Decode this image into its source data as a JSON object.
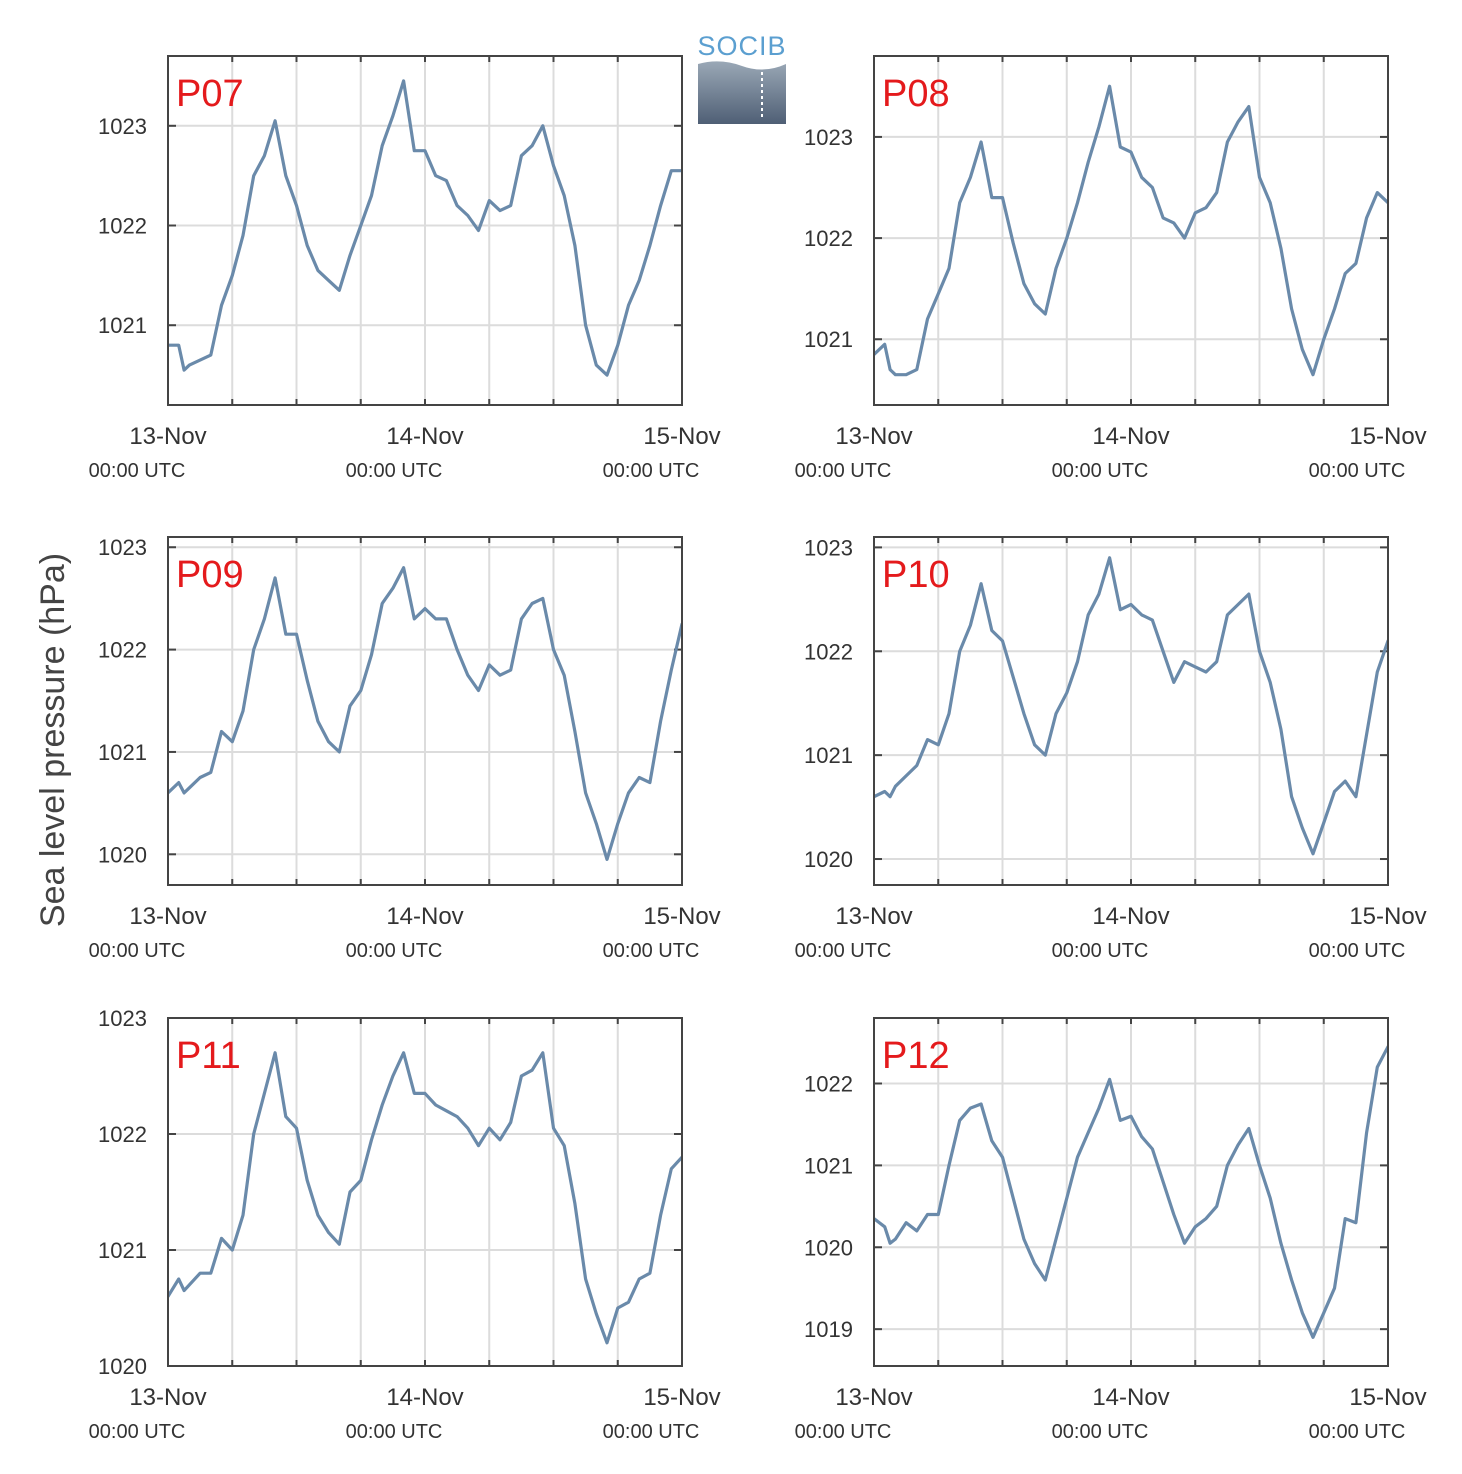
{
  "figure": {
    "ylabel": "Sea level pressure (hPa)",
    "logo_text": "SOCIB",
    "line_color": "#6a8aaa",
    "label_color": "#e41a1c"
  },
  "chart_data": [
    {
      "type": "line",
      "station": "P07",
      "x_unit": "hours since 13-Nov 00:00 UTC",
      "ylim": [
        1020.2,
        1023.7
      ],
      "yticks": [
        1021,
        1022,
        1023
      ],
      "xticks": [
        {
          "hour": 0,
          "date": "13-Nov",
          "time": "00:00 UTC"
        },
        {
          "hour": 24,
          "date": "14-Nov",
          "time": "00:00 UTC"
        },
        {
          "hour": 48,
          "date": "15-Nov",
          "time": "00:00 UTC"
        }
      ],
      "grid": true,
      "x": [
        0,
        1,
        1.5,
        2,
        3,
        4,
        5,
        6,
        7,
        8,
        9,
        10,
        11,
        12,
        13,
        14,
        15,
        16,
        17,
        18,
        19,
        20,
        21,
        22,
        23,
        24,
        25,
        26,
        27,
        28,
        29,
        30,
        31,
        32,
        33,
        34,
        35,
        36,
        37,
        38,
        39,
        40,
        41,
        42,
        43,
        44,
        45,
        46,
        47,
        48
      ],
      "y": [
        1020.8,
        1020.8,
        1020.55,
        1020.6,
        1020.65,
        1020.7,
        1021.2,
        1021.5,
        1021.9,
        1022.5,
        1022.7,
        1023.05,
        1022.5,
        1022.2,
        1021.8,
        1021.55,
        1021.45,
        1021.35,
        1021.7,
        1022.0,
        1022.3,
        1022.8,
        1023.1,
        1023.45,
        1022.75,
        1022.75,
        1022.5,
        1022.45,
        1022.2,
        1022.1,
        1021.95,
        1022.25,
        1022.15,
        1022.2,
        1022.7,
        1022.8,
        1023.0,
        1022.6,
        1022.3,
        1021.8,
        1021.0,
        1020.6,
        1020.5,
        1020.8,
        1021.2,
        1021.45,
        1021.8,
        1022.2,
        1022.55,
        1022.55
      ]
    },
    {
      "type": "line",
      "station": "P08",
      "x_unit": "hours since 13-Nov 00:00 UTC",
      "ylim": [
        1020.35,
        1023.8
      ],
      "yticks": [
        1021,
        1022,
        1023
      ],
      "xticks": [
        {
          "hour": 0,
          "date": "13-Nov",
          "time": "00:00 UTC"
        },
        {
          "hour": 24,
          "date": "14-Nov",
          "time": "00:00 UTC"
        },
        {
          "hour": 48,
          "date": "15-Nov",
          "time": "00:00 UTC"
        }
      ],
      "grid": true,
      "x": [
        0,
        1,
        1.5,
        2,
        3,
        4,
        5,
        6,
        7,
        8,
        9,
        10,
        11,
        12,
        13,
        14,
        15,
        16,
        17,
        18,
        19,
        20,
        21,
        22,
        23,
        24,
        25,
        26,
        27,
        28,
        29,
        30,
        31,
        32,
        33,
        34,
        35,
        36,
        37,
        38,
        39,
        40,
        41,
        42,
        43,
        44,
        45,
        46,
        47,
        48
      ],
      "y": [
        1020.85,
        1020.95,
        1020.7,
        1020.65,
        1020.65,
        1020.7,
        1021.2,
        1021.45,
        1021.7,
        1022.35,
        1022.6,
        1022.95,
        1022.4,
        1022.4,
        1021.95,
        1021.55,
        1021.35,
        1021.25,
        1021.7,
        1022.0,
        1022.35,
        1022.75,
        1023.1,
        1023.5,
        1022.9,
        1022.85,
        1022.6,
        1022.5,
        1022.2,
        1022.15,
        1022.0,
        1022.25,
        1022.3,
        1022.45,
        1022.95,
        1023.15,
        1023.3,
        1022.6,
        1022.35,
        1021.9,
        1021.3,
        1020.9,
        1020.65,
        1021.0,
        1021.3,
        1021.65,
        1021.75,
        1022.2,
        1022.45,
        1022.35
      ]
    },
    {
      "type": "line",
      "station": "P09",
      "x_unit": "hours since 13-Nov 00:00 UTC",
      "ylim": [
        1019.7,
        1023.1
      ],
      "yticks": [
        1020,
        1021,
        1022,
        1023
      ],
      "xticks": [
        {
          "hour": 0,
          "date": "13-Nov",
          "time": "00:00 UTC"
        },
        {
          "hour": 24,
          "date": "14-Nov",
          "time": "00:00 UTC"
        },
        {
          "hour": 48,
          "date": "15-Nov",
          "time": "00:00 UTC"
        }
      ],
      "grid": true,
      "x": [
        0,
        1,
        1.5,
        2,
        3,
        4,
        5,
        6,
        7,
        8,
        9,
        10,
        11,
        12,
        13,
        14,
        15,
        16,
        17,
        18,
        19,
        20,
        21,
        22,
        23,
        24,
        25,
        26,
        27,
        28,
        29,
        30,
        31,
        32,
        33,
        34,
        35,
        36,
        37,
        38,
        39,
        40,
        41,
        42,
        43,
        44,
        45,
        46,
        47,
        48
      ],
      "y": [
        1020.6,
        1020.7,
        1020.6,
        1020.65,
        1020.75,
        1020.8,
        1021.2,
        1021.1,
        1021.4,
        1022.0,
        1022.3,
        1022.7,
        1022.15,
        1022.15,
        1021.7,
        1021.3,
        1021.1,
        1021.0,
        1021.45,
        1021.6,
        1021.95,
        1022.45,
        1022.6,
        1022.8,
        1022.3,
        1022.4,
        1022.3,
        1022.3,
        1022.0,
        1021.75,
        1021.6,
        1021.85,
        1021.75,
        1021.8,
        1022.3,
        1022.45,
        1022.5,
        1022.0,
        1021.75,
        1021.2,
        1020.6,
        1020.3,
        1019.95,
        1020.3,
        1020.6,
        1020.75,
        1020.7,
        1021.3,
        1021.8,
        1022.25
      ]
    },
    {
      "type": "line",
      "station": "P10",
      "x_unit": "hours since 13-Nov 00:00 UTC",
      "ylim": [
        1019.75,
        1023.1
      ],
      "yticks": [
        1020,
        1021,
        1022,
        1023
      ],
      "xticks": [
        {
          "hour": 0,
          "date": "13-Nov",
          "time": "00:00 UTC"
        },
        {
          "hour": 24,
          "date": "14-Nov",
          "time": "00:00 UTC"
        },
        {
          "hour": 48,
          "date": "15-Nov",
          "time": "00:00 UTC"
        }
      ],
      "grid": true,
      "x": [
        0,
        1,
        1.5,
        2,
        3,
        4,
        5,
        6,
        7,
        8,
        9,
        10,
        11,
        12,
        13,
        14,
        15,
        16,
        17,
        18,
        19,
        20,
        21,
        22,
        23,
        24,
        25,
        26,
        27,
        28,
        29,
        30,
        31,
        32,
        33,
        34,
        35,
        36,
        37,
        38,
        39,
        40,
        41,
        42,
        43,
        44,
        45,
        46,
        47,
        48
      ],
      "y": [
        1020.6,
        1020.65,
        1020.6,
        1020.7,
        1020.8,
        1020.9,
        1021.15,
        1021.1,
        1021.4,
        1022.0,
        1022.25,
        1022.65,
        1022.2,
        1022.1,
        1021.75,
        1021.4,
        1021.1,
        1021.0,
        1021.4,
        1021.6,
        1021.9,
        1022.35,
        1022.55,
        1022.9,
        1022.4,
        1022.45,
        1022.35,
        1022.3,
        1022.0,
        1021.7,
        1021.9,
        1021.85,
        1021.8,
        1021.9,
        1022.35,
        1022.45,
        1022.55,
        1022.0,
        1021.7,
        1021.25,
        1020.6,
        1020.3,
        1020.05,
        1020.35,
        1020.65,
        1020.75,
        1020.6,
        1021.2,
        1021.8,
        1022.1
      ]
    },
    {
      "type": "line",
      "station": "P11",
      "x_unit": "hours since 13-Nov 00:00 UTC",
      "ylim": [
        1020.0,
        1023.0
      ],
      "yticks": [
        1020,
        1021,
        1022,
        1023
      ],
      "xticks": [
        {
          "hour": 0,
          "date": "13-Nov",
          "time": "00:00 UTC"
        },
        {
          "hour": 24,
          "date": "14-Nov",
          "time": "00:00 UTC"
        },
        {
          "hour": 48,
          "date": "15-Nov",
          "time": "00:00 UTC"
        }
      ],
      "grid": true,
      "x": [
        0,
        1,
        1.5,
        2,
        3,
        4,
        5,
        6,
        7,
        8,
        9,
        10,
        11,
        12,
        13,
        14,
        15,
        16,
        17,
        18,
        19,
        20,
        21,
        22,
        23,
        24,
        25,
        26,
        27,
        28,
        29,
        30,
        31,
        32,
        33,
        34,
        35,
        36,
        37,
        38,
        39,
        40,
        41,
        42,
        43,
        44,
        45,
        46,
        47,
        48
      ],
      "y": [
        1020.6,
        1020.75,
        1020.65,
        1020.7,
        1020.8,
        1020.8,
        1021.1,
        1021.0,
        1021.3,
        1022.0,
        1022.35,
        1022.7,
        1022.15,
        1022.05,
        1021.6,
        1021.3,
        1021.15,
        1021.05,
        1021.5,
        1021.6,
        1021.95,
        1022.25,
        1022.5,
        1022.7,
        1022.35,
        1022.35,
        1022.25,
        1022.2,
        1022.15,
        1022.05,
        1021.9,
        1022.05,
        1021.95,
        1022.1,
        1022.5,
        1022.55,
        1022.7,
        1022.05,
        1021.9,
        1021.4,
        1020.75,
        1020.45,
        1020.2,
        1020.5,
        1020.55,
        1020.75,
        1020.8,
        1021.3,
        1021.7,
        1021.8
      ]
    },
    {
      "type": "line",
      "station": "P12",
      "x_unit": "hours since 13-Nov 00:00 UTC",
      "ylim": [
        1018.55,
        1022.8
      ],
      "yticks": [
        1019,
        1020,
        1021,
        1022
      ],
      "xticks": [
        {
          "hour": 0,
          "date": "13-Nov",
          "time": "00:00 UTC"
        },
        {
          "hour": 24,
          "date": "14-Nov",
          "time": "00:00 UTC"
        },
        {
          "hour": 48,
          "date": "15-Nov",
          "time": "00:00 UTC"
        }
      ],
      "grid": true,
      "x": [
        0,
        1,
        1.5,
        2,
        3,
        4,
        5,
        6,
        7,
        8,
        9,
        10,
        11,
        12,
        13,
        14,
        15,
        16,
        17,
        18,
        19,
        20,
        21,
        22,
        23,
        24,
        25,
        26,
        27,
        28,
        29,
        30,
        31,
        32,
        33,
        34,
        35,
        36,
        37,
        38,
        39,
        40,
        41,
        42,
        43,
        44,
        45,
        46,
        47,
        48
      ],
      "y": [
        1020.35,
        1020.25,
        1020.05,
        1020.1,
        1020.3,
        1020.2,
        1020.4,
        1020.4,
        1021.0,
        1021.55,
        1021.7,
        1021.75,
        1021.3,
        1021.1,
        1020.6,
        1020.1,
        1019.8,
        1019.6,
        1020.1,
        1020.6,
        1021.1,
        1021.4,
        1021.7,
        1022.05,
        1021.55,
        1021.6,
        1021.35,
        1021.2,
        1020.8,
        1020.4,
        1020.05,
        1020.25,
        1020.35,
        1020.5,
        1021.0,
        1021.25,
        1021.45,
        1021.0,
        1020.6,
        1020.05,
        1019.6,
        1019.2,
        1018.9,
        1019.2,
        1019.5,
        1020.35,
        1020.3,
        1021.4,
        1022.2,
        1022.45
      ]
    }
  ]
}
